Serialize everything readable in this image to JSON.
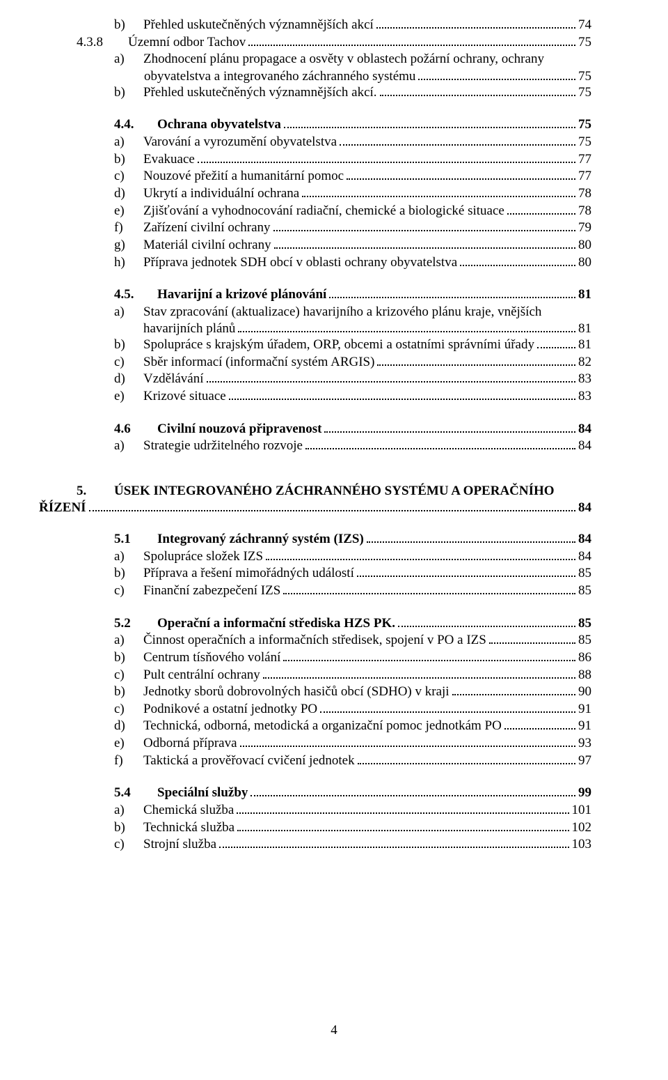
{
  "footer_page": "4",
  "entries": [
    {
      "type": "item",
      "indent": "a",
      "marker": "b)",
      "label": "Přehled uskutečněných významnějších akcí",
      "page": "74"
    },
    {
      "type": "item",
      "indent": "num",
      "marker": "4.3.8",
      "markerClass": "marker-num",
      "label": "Územní odbor Tachov",
      "page": "75"
    },
    {
      "type": "wrap",
      "indent": "a",
      "marker": "a)",
      "line1": "Zhodnocení plánu propagace a osvěty v oblastech požární ochrany, ochrany",
      "line2": "obyvatelstva a integrovaného záchranného systému",
      "page": "75",
      "contPad": "1px"
    },
    {
      "type": "item",
      "indent": "a",
      "marker": "b)",
      "label": "Přehled uskutečněných významnějších akcí.",
      "page": "75"
    },
    {
      "type": "gap",
      "size": "sm"
    },
    {
      "type": "sub",
      "marker": "4.4.",
      "label": "Ochrana obyvatelstva",
      "page": "75"
    },
    {
      "type": "item",
      "indent": "a",
      "marker": "a)",
      "label": "Varování a vyrozumění obyvatelstva",
      "page": "75"
    },
    {
      "type": "item",
      "indent": "a",
      "marker": "b)",
      "label": "Evakuace",
      "page": "77"
    },
    {
      "type": "item",
      "indent": "a",
      "marker": "c)",
      "label": "Nouzové přežití a humanitární pomoc",
      "page": "77"
    },
    {
      "type": "item",
      "indent": "a",
      "marker": "d)",
      "label": "Ukrytí a individuální ochrana",
      "page": "78"
    },
    {
      "type": "item",
      "indent": "a",
      "marker": "e)",
      "label": "Zjišťování a vyhodnocování radiační, chemické a biologické situace",
      "page": "78"
    },
    {
      "type": "item",
      "indent": "a",
      "marker": "f)",
      "label": "Zařízení civilní ochrany",
      "page": "79"
    },
    {
      "type": "item",
      "indent": "a",
      "marker": "g)",
      "label": "Materiál civilní ochrany",
      "page": "80"
    },
    {
      "type": "item",
      "indent": "a",
      "marker": "h)",
      "label": "Příprava jednotek SDH obcí v oblasti ochrany obyvatelstva",
      "page": "80"
    },
    {
      "type": "gap",
      "size": "sm"
    },
    {
      "type": "sub",
      "marker": "4.5.",
      "label": "Havarijní a krizové plánování",
      "page": "81"
    },
    {
      "type": "wrap",
      "indent": "a",
      "marker": "a)",
      "line1": "Stav zpracování (aktualizace) havarijního a krizového plánu kraje, vnějších",
      "line2": " havarijních plánů",
      "page": "81",
      "contPad": "0px"
    },
    {
      "type": "item",
      "indent": "a",
      "marker": "b)",
      "label": "Spolupráce s krajským úřadem, ORP, obcemi a ostatními správními úřady",
      "page": "81"
    },
    {
      "type": "item",
      "indent": "a",
      "marker": "c)",
      "label": "Sběr informací (informační systém ARGIS)",
      "page": "82"
    },
    {
      "type": "item",
      "indent": "a",
      "marker": "d)",
      "label": "Vzdělávání",
      "page": "83"
    },
    {
      "type": "item",
      "indent": "a",
      "marker": "e)",
      "label": "Krizové situace",
      "page": "83"
    },
    {
      "type": "gap",
      "size": "sm"
    },
    {
      "type": "sub",
      "marker": "4.6",
      "label": "Civilní nouzová připravenost",
      "page": "84"
    },
    {
      "type": "item",
      "indent": "a",
      "marker": "a)",
      "label": "Strategie udržitelného rozvoje",
      "page": "84"
    },
    {
      "type": "gap",
      "size": "md"
    },
    {
      "type": "h1wrap",
      "marker": "5.",
      "line1": "ÚSEK INTEGROVANÉHO ZÁCHRANNÉHO SYSTÉMU A OPERAČNÍHO",
      "line2": "ŘÍZENÍ",
      "page": "84"
    },
    {
      "type": "gap",
      "size": "sm"
    },
    {
      "type": "sub",
      "marker": "5.1",
      "label": "Integrovaný záchranný systém (IZS)",
      "page": "84"
    },
    {
      "type": "item",
      "indent": "a",
      "marker": "a)",
      "label": "Spolupráce složek IZS",
      "page": "84"
    },
    {
      "type": "item",
      "indent": "a",
      "marker": "b)",
      "label": "Příprava a řešení mimořádných událostí",
      "page": "85"
    },
    {
      "type": "item",
      "indent": "a",
      "marker": "c)",
      "label": "Finanční zabezpečení IZS",
      "page": "85"
    },
    {
      "type": "gap",
      "size": "sm"
    },
    {
      "type": "sub",
      "marker": "5.2",
      "label": "Operační a informační střediska HZS PK.",
      "page": "85"
    },
    {
      "type": "item",
      "indent": "a",
      "marker": "a)",
      "label": "Činnost operačních a informačních středisek, spojení v PO a IZS",
      "page": "85"
    },
    {
      "type": "item",
      "indent": "a",
      "marker": "b)",
      "label": "Centrum tísňového volání",
      "page": "86"
    },
    {
      "type": "item",
      "indent": "a",
      "marker": "c)",
      "label": "Pult centrální ochrany",
      "page": "88"
    },
    {
      "type": "item",
      "indent": "a",
      "marker": "b)",
      "label": "Jednotky sborů dobrovolných hasičů obcí (SDHO) v kraji",
      "page": "90"
    },
    {
      "type": "item",
      "indent": "a",
      "marker": "c)",
      "label": "Podnikové a ostatní jednotky PO",
      "page": "91"
    },
    {
      "type": "item",
      "indent": "a",
      "marker": "d)",
      "label": "Technická, odborná, metodická a organizační pomoc jednotkám PO",
      "page": "91"
    },
    {
      "type": "item",
      "indent": "a",
      "marker": "e)",
      "label": "Odborná příprava",
      "page": "93"
    },
    {
      "type": "item",
      "indent": "a",
      "marker": "f)",
      "label": "Taktická a prověřovací cvičení jednotek",
      "page": "97"
    },
    {
      "type": "gap",
      "size": "sm"
    },
    {
      "type": "sub",
      "marker": "5.4",
      "label": "Speciální služby",
      "page": "99"
    },
    {
      "type": "item",
      "indent": "a",
      "marker": "a)",
      "label": "Chemická služba",
      "page": "101"
    },
    {
      "type": "item",
      "indent": "a",
      "marker": "b)",
      "label": "Technická služba",
      "page": "102"
    },
    {
      "type": "item",
      "indent": "a",
      "marker": "c)",
      "label": "Strojní služba",
      "page": "103"
    }
  ]
}
